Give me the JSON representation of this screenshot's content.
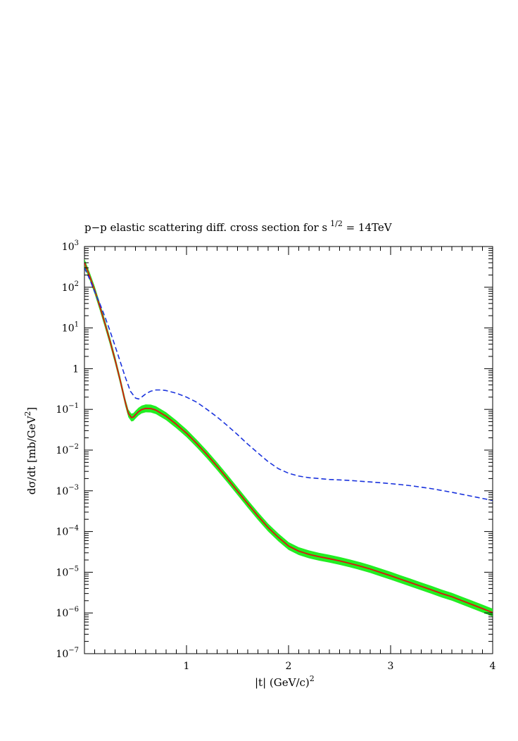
{
  "chart_data": {
    "type": "line",
    "title": "p−p elastic scattering diff. cross section for s",
    "title_sup": "1/2",
    "title_tail": " = 14TeV",
    "xlabel": "|t|  (GeV/c)",
    "xlabel_sup": "2",
    "ylabel": "dσ/dt  [mb/GeV",
    "ylabel_sup": "2",
    "ylabel_tail": "]",
    "xlim": [
      0,
      4
    ],
    "ylim": [
      1e-07,
      1000
    ],
    "y_scale": "log",
    "grid": false,
    "x_ticks": [
      {
        "value": 1,
        "label": "1"
      },
      {
        "value": 2,
        "label": "2"
      },
      {
        "value": 3,
        "label": "3"
      },
      {
        "value": 4,
        "label": "4"
      }
    ],
    "y_ticks": [
      {
        "value": 1000,
        "base": "10",
        "exp": "3"
      },
      {
        "value": 100,
        "base": "10",
        "exp": "2"
      },
      {
        "value": 10,
        "base": "10",
        "exp": "1"
      },
      {
        "value": 1,
        "base": "1",
        "exp": ""
      },
      {
        "value": 0.1,
        "base": "10",
        "exp": "−1"
      },
      {
        "value": 0.01,
        "base": "10",
        "exp": "−2"
      },
      {
        "value": 0.001,
        "base": "10",
        "exp": "−3"
      },
      {
        "value": 0.0001,
        "base": "10",
        "exp": "−4"
      },
      {
        "value": 1e-05,
        "base": "10",
        "exp": "−5"
      },
      {
        "value": 1e-06,
        "base": "10",
        "exp": "−6"
      },
      {
        "value": 1e-07,
        "base": "10",
        "exp": "−7"
      }
    ],
    "series": [
      {
        "style": "solid",
        "color": "#dd1111",
        "band_color": "#22ee22",
        "band_factor": 1.25,
        "x": [
          0.0,
          0.05,
          0.1,
          0.15,
          0.2,
          0.25,
          0.3,
          0.35,
          0.4,
          0.43,
          0.46,
          0.48,
          0.5,
          0.53,
          0.56,
          0.6,
          0.65,
          0.7,
          0.8,
          0.9,
          1.0,
          1.1,
          1.2,
          1.3,
          1.4,
          1.5,
          1.6,
          1.7,
          1.8,
          1.9,
          2.0,
          2.1,
          2.2,
          2.3,
          2.4,
          2.5,
          2.6,
          2.7,
          2.8,
          2.9,
          3.0,
          3.1,
          3.2,
          3.3,
          3.4,
          3.5,
          3.6,
          3.7,
          3.8,
          3.9,
          4.0
        ],
        "y": [
          400,
          190,
          85,
          34,
          13,
          4.8,
          1.65,
          0.52,
          0.15,
          0.08,
          0.063,
          0.065,
          0.074,
          0.088,
          0.099,
          0.106,
          0.105,
          0.096,
          0.068,
          0.043,
          0.026,
          0.0145,
          0.0078,
          0.004,
          0.002,
          0.00098,
          0.00048,
          0.00024,
          0.000125,
          7.2e-05,
          4.4e-05,
          3.3e-05,
          2.75e-05,
          2.4e-05,
          2.15e-05,
          1.9e-05,
          1.65e-05,
          1.42e-05,
          1.2e-05,
          9.9e-06,
          8.2e-06,
          6.7e-06,
          5.5e-06,
          4.5e-06,
          3.7e-06,
          3e-06,
          2.5e-06,
          2e-06,
          1.6e-06,
          1.28e-06,
          1.02e-06
        ]
      },
      {
        "style": "dashed",
        "color": "#1a33dd",
        "x": [
          0.0,
          0.05,
          0.1,
          0.15,
          0.2,
          0.25,
          0.3,
          0.35,
          0.4,
          0.45,
          0.5,
          0.53,
          0.56,
          0.6,
          0.65,
          0.7,
          0.75,
          0.8,
          0.9,
          1.0,
          1.1,
          1.2,
          1.3,
          1.4,
          1.5,
          1.6,
          1.7,
          1.8,
          1.9,
          2.0,
          2.1,
          2.2,
          2.3,
          2.4,
          2.5,
          2.6,
          2.7,
          2.8,
          2.9,
          3.0,
          3.1,
          3.2,
          3.3,
          3.4,
          3.5,
          3.6,
          3.7,
          3.8,
          3.9,
          4.0
        ],
        "y": [
          300,
          160,
          78,
          40,
          19,
          8.5,
          3.6,
          1.5,
          0.62,
          0.28,
          0.19,
          0.18,
          0.2,
          0.24,
          0.28,
          0.3,
          0.3,
          0.29,
          0.25,
          0.2,
          0.15,
          0.1,
          0.065,
          0.04,
          0.024,
          0.014,
          0.0085,
          0.0052,
          0.0035,
          0.0027,
          0.0023,
          0.0021,
          0.002,
          0.0019,
          0.00185,
          0.0018,
          0.00172,
          0.00165,
          0.00158,
          0.0015,
          0.00142,
          0.00133,
          0.00123,
          0.00113,
          0.00102,
          0.00092,
          0.00082,
          0.00073,
          0.00065,
          0.00058
        ]
      }
    ]
  }
}
